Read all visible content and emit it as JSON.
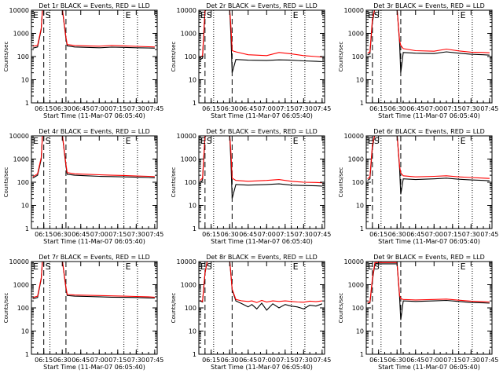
{
  "figure": {
    "background": "#ffffff",
    "events_color": "#000000",
    "lld_color": "#ff0000"
  },
  "shared": {
    "xlabel": "Start Time (11-Mar-07 06:05:40)",
    "ylabel": "Counts/sec",
    "x_tick_labels": [
      "06:15",
      "06:30",
      "06:45",
      "07:00",
      "07:15",
      "07:30",
      "07:45"
    ],
    "y_tick_labels": [
      "1",
      "10",
      "100",
      "1000",
      "10000"
    ],
    "marker_labels": [
      "E",
      "S",
      "E"
    ]
  },
  "chart_data": [
    {
      "type": "line",
      "title": "Det 1r BLACK = Events, RED = LLD",
      "xlabel": "Start Time (11-Mar-07 06:05:40)",
      "ylabel": "Counts/sec",
      "y_scale": "log",
      "ylim": [
        1,
        10000
      ],
      "x_range": [
        "06:05",
        "07:47"
      ],
      "dashed_markers": [
        "06:15",
        "06:33"
      ],
      "dotted_markers": [
        "06:20",
        "07:20",
        "07:31"
      ],
      "series": [
        {
          "name": "Events",
          "color": "#000000",
          "x": [
            "06:06",
            "06:10",
            "06:13",
            "06:14",
            "06:30",
            "06:33",
            "06:34",
            "06:40",
            "06:50",
            "07:00",
            "07:10",
            "07:20",
            "07:30",
            "07:40",
            "07:45"
          ],
          "y": [
            230,
            260,
            1500,
            12000,
            12000,
            600,
            290,
            260,
            250,
            240,
            255,
            250,
            240,
            235,
            230
          ]
        },
        {
          "name": "LLD",
          "color": "#ff0000",
          "x": [
            "06:06",
            "06:10",
            "06:13",
            "06:14",
            "06:30",
            "06:33",
            "06:34",
            "06:40",
            "06:50",
            "07:00",
            "07:10",
            "07:20",
            "07:30",
            "07:40",
            "07:45"
          ],
          "y": [
            280,
            300,
            1700,
            12000,
            12000,
            700,
            330,
            300,
            290,
            280,
            300,
            290,
            275,
            265,
            260
          ]
        }
      ]
    },
    {
      "type": "line",
      "title": "Det 2r BLACK = Events, RED = LLD",
      "xlabel": "Start Time (11-Mar-07 06:05:40)",
      "ylabel": "Counts/sec",
      "y_scale": "log",
      "ylim": [
        1,
        10000
      ],
      "x_range": [
        "06:05",
        "07:47"
      ],
      "dashed_markers": [
        "06:10",
        "06:32"
      ],
      "dotted_markers": [
        "06:17",
        "07:20",
        "07:31"
      ],
      "series": [
        {
          "name": "Events",
          "color": "#000000",
          "x": [
            "06:06",
            "06:08",
            "06:10",
            "06:12",
            "06:30",
            "06:31",
            "06:32",
            "06:35",
            "06:45",
            "07:00",
            "07:10",
            "07:20",
            "07:30",
            "07:40",
            "07:45"
          ],
          "y": [
            75,
            85,
            9000,
            12000,
            12000,
            800,
            20,
            75,
            70,
            68,
            72,
            70,
            65,
            62,
            60
          ]
        },
        {
          "name": "LLD",
          "color": "#ff0000",
          "x": [
            "06:06",
            "06:08",
            "06:10",
            "06:12",
            "06:30",
            "06:31",
            "06:32",
            "06:35",
            "06:45",
            "07:00",
            "07:10",
            "07:20",
            "07:30",
            "07:40",
            "07:45"
          ],
          "y": [
            90,
            110,
            10000,
            12000,
            12000,
            2000,
            180,
            160,
            120,
            110,
            150,
            130,
            110,
            100,
            95
          ]
        }
      ]
    },
    {
      "type": "line",
      "title": "Det 3r BLACK = Events, RED = LLD",
      "xlabel": "Start Time (11-Mar-07 06:05:40)",
      "ylabel": "Counts/sec",
      "y_scale": "log",
      "ylim": [
        1,
        10000
      ],
      "x_range": [
        "06:05",
        "07:47"
      ],
      "dashed_markers": [
        "06:10",
        "06:33"
      ],
      "dotted_markers": [
        "06:17",
        "07:20",
        "07:31"
      ],
      "series": [
        {
          "name": "Events",
          "color": "#000000",
          "x": [
            "06:06",
            "06:08",
            "06:10",
            "06:12",
            "06:30",
            "06:32",
            "06:33",
            "06:35",
            "06:45",
            "07:00",
            "07:10",
            "07:20",
            "07:30",
            "07:40",
            "07:45"
          ],
          "y": [
            120,
            130,
            3000,
            12000,
            12000,
            400,
            20,
            150,
            140,
            135,
            160,
            140,
            125,
            120,
            115
          ]
        },
        {
          "name": "LLD",
          "color": "#ff0000",
          "x": [
            "06:06",
            "06:08",
            "06:10",
            "06:12",
            "06:30",
            "06:32",
            "06:33",
            "06:35",
            "06:45",
            "07:00",
            "07:10",
            "07:20",
            "07:30",
            "07:40",
            "07:45"
          ],
          "y": [
            140,
            160,
            4000,
            12000,
            12000,
            500,
            300,
            220,
            180,
            170,
            210,
            175,
            155,
            150,
            145
          ]
        }
      ]
    },
    {
      "type": "line",
      "title": "Det 4r BLACK = Events, RED = LLD",
      "xlabel": "Start Time (11-Mar-07 06:05:40)",
      "ylabel": "Counts/sec",
      "y_scale": "log",
      "ylim": [
        1,
        10000
      ],
      "x_range": [
        "06:05",
        "07:47"
      ],
      "dashed_markers": [
        "06:15",
        "06:33"
      ],
      "dotted_markers": [
        "06:20",
        "07:20",
        "07:31"
      ],
      "series": [
        {
          "name": "Events",
          "color": "#000000",
          "x": [
            "06:06",
            "06:10",
            "06:13",
            "06:14",
            "06:30",
            "06:33",
            "06:34",
            "06:40",
            "06:50",
            "07:00",
            "07:10",
            "07:20",
            "07:30",
            "07:40",
            "07:45"
          ],
          "y": [
            150,
            200,
            1000,
            12000,
            12000,
            500,
            220,
            200,
            190,
            180,
            175,
            170,
            165,
            160,
            155
          ]
        },
        {
          "name": "LLD",
          "color": "#ff0000",
          "x": [
            "06:06",
            "06:10",
            "06:13",
            "06:14",
            "06:30",
            "06:33",
            "06:34",
            "06:40",
            "06:50",
            "07:00",
            "07:10",
            "07:20",
            "07:30",
            "07:40",
            "07:45"
          ],
          "y": [
            170,
            230,
            1200,
            12000,
            12000,
            600,
            260,
            230,
            220,
            210,
            200,
            195,
            185,
            180,
            175
          ]
        }
      ]
    },
    {
      "type": "line",
      "title": "Det 5r BLACK = Events, RED = LLD",
      "xlabel": "Start Time (11-Mar-07 06:05:40)",
      "ylabel": "Counts/sec",
      "y_scale": "log",
      "ylim": [
        1,
        10000
      ],
      "x_range": [
        "06:05",
        "07:47"
      ],
      "dashed_markers": [
        "06:10",
        "06:32"
      ],
      "dotted_markers": [
        "06:17",
        "07:20",
        "07:31"
      ],
      "series": [
        {
          "name": "Events",
          "color": "#000000",
          "x": [
            "06:06",
            "06:08",
            "06:10",
            "06:12",
            "06:30",
            "06:31",
            "06:32",
            "06:35",
            "06:45",
            "07:00",
            "07:10",
            "07:20",
            "07:30",
            "07:40",
            "07:45"
          ],
          "y": [
            100,
            120,
            9000,
            12000,
            12000,
            800,
            20,
            80,
            75,
            80,
            85,
            75,
            72,
            70,
            68
          ]
        },
        {
          "name": "LLD",
          "color": "#ff0000",
          "x": [
            "06:06",
            "06:08",
            "06:10",
            "06:12",
            "06:30",
            "06:31",
            "06:32",
            "06:35",
            "06:45",
            "07:00",
            "07:10",
            "07:20",
            "07:30",
            "07:40",
            "07:45"
          ],
          "y": [
            120,
            150,
            10000,
            12000,
            12000,
            2000,
            150,
            120,
            110,
            120,
            130,
            110,
            100,
            98,
            95
          ]
        }
      ]
    },
    {
      "type": "line",
      "title": "Det 6r BLACK = Events, RED = LLD",
      "xlabel": "Start Time (11-Mar-07 06:05:40)",
      "ylabel": "Counts/sec",
      "y_scale": "log",
      "ylim": [
        1,
        10000
      ],
      "x_range": [
        "06:05",
        "07:47"
      ],
      "dashed_markers": [
        "06:10",
        "06:33"
      ],
      "dotted_markers": [
        "06:17",
        "07:20",
        "07:31"
      ],
      "series": [
        {
          "name": "Events",
          "color": "#000000",
          "x": [
            "06:06",
            "06:08",
            "06:10",
            "06:12",
            "06:30",
            "06:32",
            "06:33",
            "06:35",
            "06:45",
            "07:00",
            "07:10",
            "07:20",
            "07:30",
            "07:40",
            "07:45"
          ],
          "y": [
            120,
            140,
            3000,
            12000,
            12000,
            400,
            30,
            140,
            130,
            140,
            150,
            135,
            125,
            120,
            115
          ]
        },
        {
          "name": "LLD",
          "color": "#ff0000",
          "x": [
            "06:06",
            "06:08",
            "06:10",
            "06:12",
            "06:30",
            "06:32",
            "06:33",
            "06:35",
            "06:45",
            "07:00",
            "07:10",
            "07:20",
            "07:30",
            "07:40",
            "07:45"
          ],
          "y": [
            140,
            170,
            4000,
            12000,
            12000,
            500,
            250,
            190,
            170,
            180,
            190,
            170,
            160,
            150,
            145
          ]
        }
      ]
    },
    {
      "type": "line",
      "title": "Det 7r BLACK = Events, RED = LLD",
      "xlabel": "Start Time (11-Mar-07 06:05:40)",
      "ylabel": "Counts/sec",
      "y_scale": "log",
      "ylim": [
        1,
        10000
      ],
      "x_range": [
        "06:05",
        "07:47"
      ],
      "dashed_markers": [
        "06:15",
        "06:33"
      ],
      "dotted_markers": [
        "06:20",
        "07:20",
        "07:31"
      ],
      "series": [
        {
          "name": "Events",
          "color": "#000000",
          "x": [
            "06:06",
            "06:10",
            "06:13",
            "06:14",
            "06:30",
            "06:33",
            "06:34",
            "06:40",
            "06:50",
            "07:00",
            "07:10",
            "07:20",
            "07:30",
            "07:40",
            "07:45"
          ],
          "y": [
            250,
            280,
            1800,
            12000,
            12000,
            700,
            340,
            320,
            310,
            300,
            290,
            285,
            280,
            270,
            265
          ]
        },
        {
          "name": "LLD",
          "color": "#ff0000",
          "x": [
            "06:06",
            "06:10",
            "06:13",
            "06:14",
            "06:30",
            "06:33",
            "06:34",
            "06:40",
            "06:50",
            "07:00",
            "07:10",
            "07:20",
            "07:30",
            "07:40",
            "07:45"
          ],
          "y": [
            280,
            320,
            2000,
            12000,
            12000,
            800,
            380,
            360,
            350,
            340,
            330,
            320,
            310,
            300,
            290
          ]
        }
      ]
    },
    {
      "type": "line",
      "title": "Det 8r BLACK = Events, RED = LLD",
      "xlabel": "Start Time (11-Mar-07 06:05:40)",
      "ylabel": "Counts/sec",
      "y_scale": "log",
      "ylim": [
        1,
        10000
      ],
      "x_range": [
        "06:05",
        "07:47"
      ],
      "dashed_markers": [
        "06:10",
        "06:32"
      ],
      "dotted_markers": [
        "06:17",
        "07:20",
        "07:31"
      ],
      "series": [
        {
          "name": "Events",
          "color": "#000000",
          "x": [
            "06:06",
            "06:08",
            "06:10",
            "06:12",
            "06:30",
            "06:32",
            "06:35",
            "06:40",
            "06:45",
            "06:48",
            "06:52",
            "06:56",
            "07:00",
            "07:05",
            "07:10",
            "07:15",
            "07:20",
            "07:25",
            "07:30",
            "07:35",
            "07:40",
            "07:45"
          ],
          "y": [
            200,
            180,
            3000,
            12000,
            12000,
            600,
            200,
            150,
            110,
            140,
            90,
            160,
            80,
            150,
            100,
            140,
            120,
            110,
            90,
            130,
            120,
            150
          ]
        },
        {
          "name": "LLD",
          "color": "#ff0000",
          "x": [
            "06:06",
            "06:08",
            "06:10",
            "06:12",
            "06:30",
            "06:32",
            "06:35",
            "06:40",
            "06:45",
            "06:48",
            "06:52",
            "06:56",
            "07:00",
            "07:05",
            "07:10",
            "07:15",
            "07:20",
            "07:25",
            "07:30",
            "07:35",
            "07:40",
            "07:45"
          ],
          "y": [
            210,
            190,
            3200,
            12000,
            12000,
            650,
            230,
            200,
            190,
            200,
            170,
            210,
            180,
            200,
            190,
            200,
            190,
            180,
            175,
            195,
            185,
            200
          ]
        }
      ]
    },
    {
      "type": "line",
      "title": "Det 9r BLACK = Events, RED = LLD",
      "xlabel": "Start Time (11-Mar-07 06:05:40)",
      "ylabel": "Counts/sec",
      "y_scale": "log",
      "ylim": [
        1,
        10000
      ],
      "x_range": [
        "06:05",
        "07:47"
      ],
      "dashed_markers": [
        "06:10",
        "06:33"
      ],
      "dotted_markers": [
        "06:17",
        "07:20",
        "07:31"
      ],
      "series": [
        {
          "name": "Events",
          "color": "#000000",
          "x": [
            "06:06",
            "06:08",
            "06:10",
            "06:12",
            "06:30",
            "06:32",
            "06:33",
            "06:35",
            "06:45",
            "07:00",
            "07:10",
            "07:20",
            "07:30",
            "07:40",
            "07:45"
          ],
          "y": [
            150,
            160,
            1500,
            8000,
            8000,
            300,
            30,
            200,
            190,
            200,
            210,
            190,
            170,
            165,
            160
          ]
        },
        {
          "name": "LLD",
          "color": "#ff0000",
          "x": [
            "06:06",
            "06:08",
            "06:10",
            "06:12",
            "06:30",
            "06:32",
            "06:33",
            "06:35",
            "06:45",
            "07:00",
            "07:10",
            "07:20",
            "07:30",
            "07:40",
            "07:45"
          ],
          "y": [
            170,
            180,
            1800,
            9000,
            9000,
            350,
            250,
            230,
            220,
            230,
            240,
            215,
            195,
            185,
            180
          ]
        }
      ]
    }
  ]
}
